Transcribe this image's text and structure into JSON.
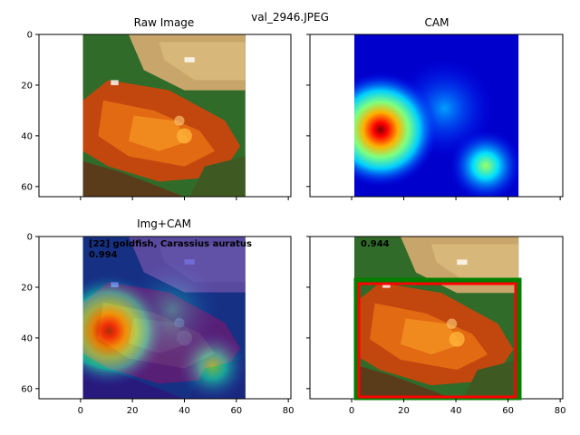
{
  "figure": {
    "title": "val_2946.JPEG"
  },
  "panels": [
    {
      "title": "Raw Image",
      "xticks": [
        "",
        "",
        "",
        "",
        "",
        ""
      ],
      "yticks": [
        "0",
        "20",
        "40",
        "60"
      ]
    },
    {
      "title": "CAM",
      "xticks": [
        "",
        "",
        "",
        "",
        "",
        ""
      ],
      "yticks": [
        "",
        "",
        "",
        ""
      ]
    },
    {
      "title": "Img+CAM",
      "xticks": [
        "0",
        "20",
        "40",
        "60",
        "80"
      ],
      "yticks": [
        "0",
        "20",
        "40",
        "60"
      ],
      "annotation": {
        "label": "[22] goldfish, Carassius auratus",
        "score": "0.994"
      }
    },
    {
      "title": "",
      "xticks": [
        "0",
        "20",
        "40",
        "60",
        "80"
      ],
      "yticks": [
        "",
        "",
        "",
        ""
      ],
      "annotation": {
        "score": "0.944"
      }
    }
  ],
  "colors": {
    "green_box": "#008000",
    "red_box": "#ff0000"
  },
  "chart_data": [
    {
      "type": "image",
      "title": "Raw Image",
      "xlim": [
        -16,
        81
      ],
      "ylim": [
        64,
        0
      ],
      "image_extent": [
        0,
        64,
        64,
        0
      ]
    },
    {
      "type": "heatmap",
      "title": "CAM",
      "colormap": "jet",
      "xlim": [
        -16,
        81
      ],
      "ylim": [
        64,
        0
      ],
      "peak": {
        "x": 10,
        "y": 37
      },
      "secondary_peak": {
        "x": 52,
        "y": 52
      }
    },
    {
      "type": "image",
      "title": "Img+CAM",
      "overlay": "CAM",
      "prediction": "[22] goldfish, Carassius auratus",
      "score": 0.994
    },
    {
      "type": "image",
      "title": "",
      "score": 0.944,
      "boxes": [
        {
          "color": "green",
          "x0": 0,
          "y0": 17,
          "x1": 64,
          "y1": 63
        },
        {
          "color": "red",
          "x0": 2,
          "y0": 18,
          "x1": 62,
          "y1": 62
        }
      ]
    }
  ]
}
